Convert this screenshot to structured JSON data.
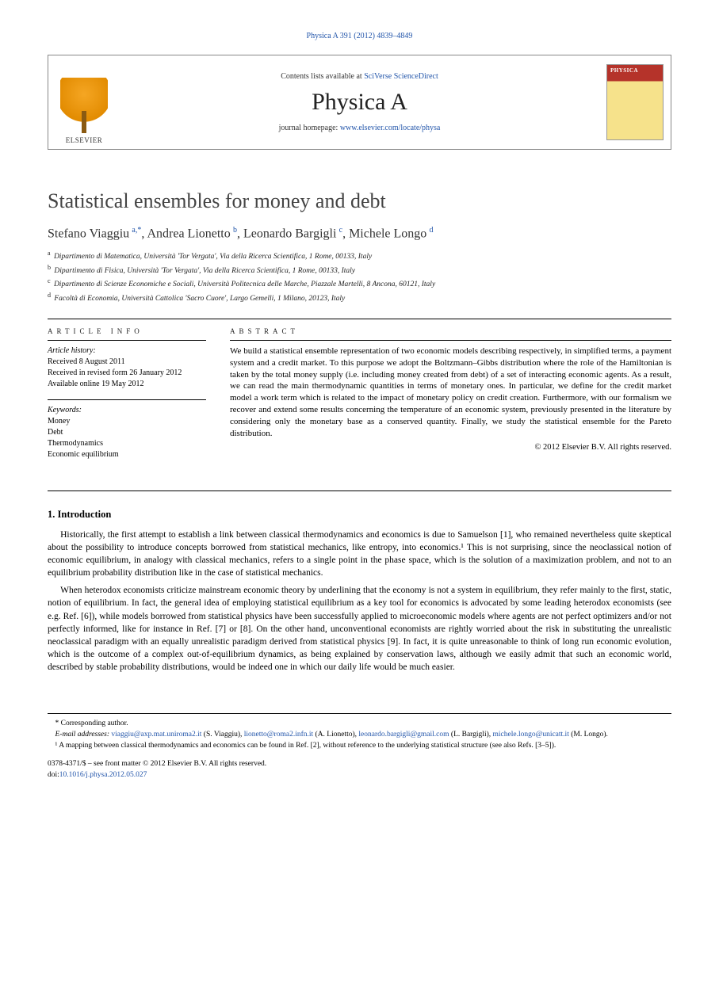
{
  "running_head": "Physica A 391 (2012) 4839–4849",
  "masthead": {
    "contents_prefix": "Contents lists available at ",
    "contents_link": "SciVerse ScienceDirect",
    "journal": "Physica A",
    "homepage_prefix": "journal homepage: ",
    "homepage_link": "www.elsevier.com/locate/physa",
    "publisher": "ELSEVIER"
  },
  "title": "Statistical ensembles for money and debt",
  "authors_html": "Stefano Viaggiu|a,*|, Andrea Lionetto|b|, Leonardo Bargigli|c|, Michele Longo|d|",
  "authors": [
    {
      "name": "Stefano Viaggiu",
      "sup": "a,*"
    },
    {
      "name": "Andrea Lionetto",
      "sup": "b"
    },
    {
      "name": "Leonardo Bargigli",
      "sup": "c"
    },
    {
      "name": "Michele Longo",
      "sup": "d"
    }
  ],
  "affils": [
    {
      "sup": "a",
      "text": "Dipartimento di Matematica, Università 'Tor Vergata', Via della Ricerca Scientifica, 1 Rome, 00133, Italy"
    },
    {
      "sup": "b",
      "text": "Dipartimento di Fisica, Università 'Tor Vergata', Via della Ricerca Scientifica, 1 Rome, 00133, Italy"
    },
    {
      "sup": "c",
      "text": "Dipartimento di Scienze Economiche e Sociali, Università Politecnica delle Marche, Piazzale Martelli, 8 Ancona, 60121, Italy"
    },
    {
      "sup": "d",
      "text": "Facoltà di Economia, Università Cattolica 'Sacro Cuore', Largo Gemelli, 1 Milano, 20123, Italy"
    }
  ],
  "info": {
    "label": "ARTICLE INFO",
    "history_label": "Article history:",
    "history": [
      "Received 8 August 2011",
      "Received in revised form 26 January 2012",
      "Available online 19 May 2012"
    ],
    "keywords_label": "Keywords:",
    "keywords": [
      "Money",
      "Debt",
      "Thermodynamics",
      "Economic equilibrium"
    ]
  },
  "abstract": {
    "label": "ABSTRACT",
    "text": "We build a statistical ensemble representation of two economic models describing respectively, in simplified terms, a payment system and a credit market. To this purpose we adopt the Boltzmann–Gibbs distribution where the role of the Hamiltonian is taken by the total money supply (i.e. including money created from debt) of a set of interacting economic agents. As a result, we can read the main thermodynamic quantities in terms of monetary ones. In particular, we define for the credit market model a work term which is related to the impact of monetary policy on credit creation. Furthermore, with our formalism we recover and extend some results concerning the temperature of an economic system, previously presented in the literature by considering only the monetary base as a conserved quantity. Finally, we study the statistical ensemble for the Pareto distribution.",
    "copyright": "© 2012 Elsevier B.V. All rights reserved."
  },
  "section1": {
    "heading": "1. Introduction",
    "p1": "Historically, the first attempt to establish a link between classical thermodynamics and economics is due to Samuelson [1], who remained nevertheless quite skeptical about the possibility to introduce concepts borrowed from statistical mechanics, like entropy, into economics.¹ This is not surprising, since the neoclassical notion of economic equilibrium, in analogy with classical mechanics, refers to a single point in the phase space, which is the solution of a maximization problem, and not to an equilibrium probability distribution like in the case of statistical mechanics.",
    "p2": "When heterodox economists criticize mainstream economic theory by underlining that the economy is not a system in equilibrium, they refer mainly to the first, static, notion of equilibrium. In fact, the general idea of employing statistical equilibrium as a key tool for economics is advocated by some leading heterodox economists (see e.g. Ref. [6]), while models borrowed from statistical physics have been successfully applied to microeconomic models where agents are not perfect optimizers and/or not perfectly informed, like for instance in Ref. [7] or [8]. On the other hand, unconventional economists are rightly worried about the risk in substituting the unrealistic neoclassical paradigm with an equally unrealistic paradigm derived from statistical physics [9]. In fact, it is quite unreasonable to think of long run economic evolution, which is the outcome of a complex out-of-equilibrium dynamics, as being explained by conservation laws, although we easily admit that such an economic world, described by stable probability distributions, would be indeed one in which our daily life would be much easier."
  },
  "footnotes": {
    "corr_label": "* Corresponding author.",
    "email_label": "E-mail addresses:",
    "emails": [
      {
        "addr": "viaggiu@axp.mat.uniroma2.it",
        "who": "(S. Viaggiu)"
      },
      {
        "addr": "lionetto@roma2.infn.it",
        "who": "(A. Lionetto)"
      },
      {
        "addr": "leonardo.bargigli@gmail.com",
        "who": "(L. Bargigli)"
      },
      {
        "addr": "michele.longo@unicatt.it",
        "who": "(M. Longo)"
      }
    ],
    "fn1": "¹ A mapping between classical thermodynamics and economics can be found in Ref. [2], without reference to the underlying statistical structure (see also Refs. [3–5])."
  },
  "footer": {
    "line1": "0378-4371/$ – see front matter © 2012 Elsevier B.V. All rights reserved.",
    "doi_prefix": "doi:",
    "doi": "10.1016/j.physa.2012.05.027"
  }
}
